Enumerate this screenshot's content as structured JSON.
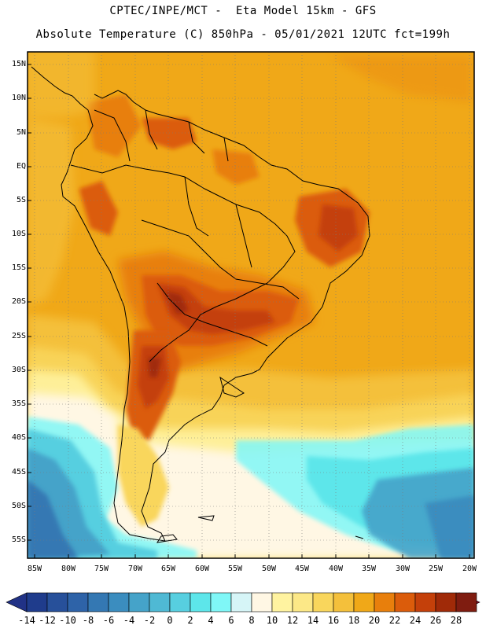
{
  "header": {
    "line1": "CPTEC/INPE/MCT -  Eta Model 15km - GFS",
    "line2": "Absolute Temperature (C) 850hPa - 05/01/2021 12UTC fct=199h"
  },
  "map": {
    "region": "South America",
    "variable": "Absolute Temperature (C)",
    "level": "850hPa",
    "model": "Eta Model 15km",
    "forcing": "GFS",
    "init": "05/01/2021 12UTC",
    "forecast_hour": "fct=199h",
    "lat_labels": [
      "15N",
      "10N",
      "5N",
      "EQ",
      "5S",
      "10S",
      "15S",
      "20S",
      "25S",
      "30S",
      "35S",
      "40S",
      "45S",
      "50S",
      "55S"
    ],
    "lon_labels": [
      "85W",
      "80W",
      "75W",
      "70W",
      "65W",
      "60W",
      "55W",
      "50W",
      "45W",
      "40W",
      "35W",
      "30W",
      "25W",
      "20W"
    ]
  },
  "colorbar": {
    "labels": [
      "-14",
      "-12",
      "-10",
      "-8",
      "-6",
      "-4",
      "-2",
      "0",
      "2",
      "4",
      "6",
      "8",
      "10",
      "12",
      "14",
      "16",
      "18",
      "20",
      "22",
      "24",
      "26",
      "28"
    ],
    "colors": [
      "#1f3c8c",
      "#27509a",
      "#2e63a8",
      "#3478b3",
      "#3b8dbf",
      "#45a3c9",
      "#4fb9d4",
      "#57cfe0",
      "#5de6ea",
      "#7ff7f7",
      "#d6f5f7",
      "#fff7e4",
      "#fff3a0",
      "#fce887",
      "#f9d65c",
      "#f4c03b",
      "#f0a818",
      "#e87f0c",
      "#db5c0b",
      "#c4400a",
      "#a02a08",
      "#7f1c10"
    ],
    "low_arrow_color": "#213286",
    "high_arrow_color": "#8a0a2a"
  }
}
